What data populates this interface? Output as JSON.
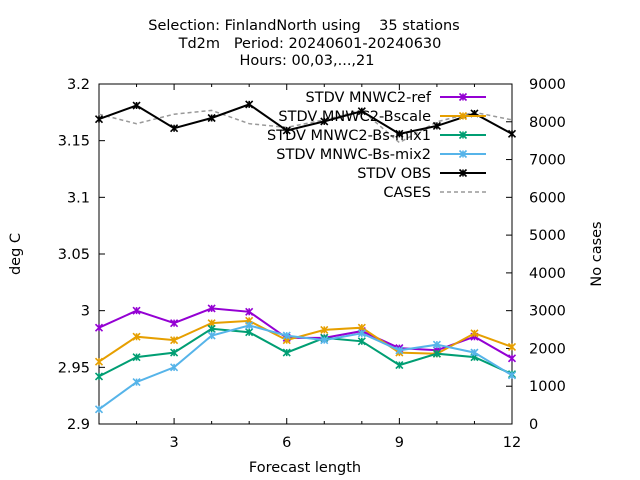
{
  "chart_data": {
    "type": "line",
    "title_lines": [
      "Selection: FinlandNorth using    35 stations",
      "Td2m   Period: 20240601-20240630",
      "Hours: 00,03,...,21"
    ],
    "xlabel": "Forecast length",
    "ylabel": "deg C",
    "y2label": "No cases",
    "xlim": [
      1,
      12
    ],
    "ylim": [
      2.9,
      3.2
    ],
    "y2lim": [
      0,
      9000
    ],
    "x_ticks": [
      3,
      6,
      9,
      12
    ],
    "y_ticks": [
      "2.9",
      "2.95",
      "3",
      "3.05",
      "3.1",
      "3.15",
      "3.2"
    ],
    "y2_ticks": [
      "0",
      "1000",
      "2000",
      "3000",
      "4000",
      "5000",
      "6000",
      "7000",
      "8000",
      "9000"
    ],
    "legend_position": "top-right",
    "x": [
      1,
      2,
      3,
      4,
      5,
      6,
      7,
      8,
      9,
      10,
      11,
      12
    ],
    "series": [
      {
        "name": "STDV MNWC2-ref",
        "color": "#9400d3",
        "marker": "x",
        "axis": "y1",
        "values": [
          2.985,
          3.0,
          2.989,
          3.002,
          2.999,
          2.976,
          2.976,
          2.982,
          2.967,
          2.965,
          2.977,
          2.958
        ]
      },
      {
        "name": "STDV MNWC2-Bscale",
        "color": "#e69f00",
        "marker": "x",
        "axis": "y1",
        "values": [
          2.955,
          2.977,
          2.974,
          2.989,
          2.991,
          2.974,
          2.983,
          2.985,
          2.963,
          2.962,
          2.98,
          2.968
        ]
      },
      {
        "name": "STDV MNWC2-Bs-mix1",
        "color": "#009e73",
        "marker": "x",
        "axis": "y1",
        "values": [
          2.942,
          2.959,
          2.963,
          2.984,
          2.981,
          2.963,
          2.976,
          2.973,
          2.952,
          2.962,
          2.959,
          2.944
        ]
      },
      {
        "name": "STDV MNWC-Bs-mix2",
        "color": "#56b4e9",
        "marker": "x",
        "axis": "y1",
        "values": [
          2.913,
          2.937,
          2.95,
          2.978,
          2.987,
          2.978,
          2.974,
          2.98,
          2.965,
          2.97,
          2.963,
          2.943
        ]
      },
      {
        "name": "STDV OBS",
        "color": "#000000",
        "marker": "x",
        "axis": "y1",
        "values": [
          3.169,
          3.181,
          3.161,
          3.17,
          3.182,
          3.159,
          3.167,
          3.176,
          3.156,
          3.163,
          3.174,
          3.156
        ]
      },
      {
        "name": "CASES",
        "color": "#999999",
        "marker": "",
        "dashed": true,
        "axis": "y2",
        "values": [
          8200,
          7950,
          8200,
          8300,
          7950,
          7850,
          8050,
          8300,
          7450,
          8000,
          8250,
          8050
        ]
      }
    ]
  }
}
